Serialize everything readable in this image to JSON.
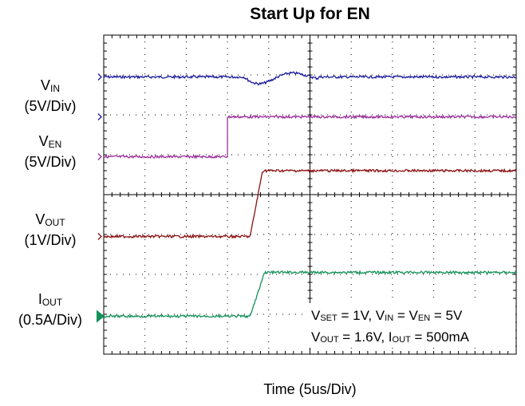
{
  "chart_data": {
    "type": "line",
    "title": "Start Up for EN",
    "xlabel": "Time (5us/Div)",
    "grid": true,
    "divisions": {
      "x": 10,
      "y": 8
    },
    "series": [
      {
        "key": "vin",
        "label_main": "V",
        "label_sub": "IN",
        "scale": "(5V/Div)",
        "color": "#1a1a9e",
        "baseline_div": 6.95,
        "kind": "flat_disturb"
      },
      {
        "key": "ven",
        "label_main": "V",
        "label_sub": "EN",
        "scale": "(5V/Div)",
        "color": "#9b2d9b",
        "baseline_div": 4.95,
        "high_div": 5.95,
        "step_x_div": 3.0,
        "kind": "step"
      },
      {
        "key": "vout",
        "label_main": "V",
        "label_sub": "OUT",
        "scale": "(1V/Div)",
        "color": "#8b1010",
        "baseline_div": 2.95,
        "high_div": 4.6,
        "rise_start_div": 3.55,
        "rise_end_div": 3.85,
        "kind": "ramp"
      },
      {
        "key": "iout",
        "label_main": "I",
        "label_sub": "OUT",
        "scale": "(0.5A/Div)",
        "color": "#14915a",
        "baseline_div": 0.95,
        "high_div": 2.05,
        "rise_start_div": 3.55,
        "rise_end_div": 3.9,
        "kind": "ramp"
      }
    ],
    "annotation": {
      "line1": {
        "a": "V",
        "a_sub": "SET",
        "b": " = 1V, V",
        "b_sub": "IN",
        "c": " = V",
        "c_sub": "EN",
        "d": " = 5V"
      },
      "line2": {
        "a": "V",
        "a_sub": "OUT",
        "b": " = 1.6V, I",
        "b_sub": "OUT",
        "c": " = 500mA"
      }
    }
  }
}
